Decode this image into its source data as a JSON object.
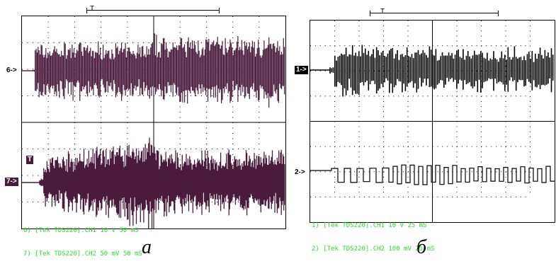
{
  "colors": {
    "trace_a": "#4a1b3d",
    "trace_b": "#000000",
    "legend": "#2be02b",
    "grid": "#000000"
  },
  "panel_a": {
    "trigger_label": "T",
    "markers": {
      "ch1": "6->",
      "ch2": "7->",
      "trigger": "T"
    },
    "legend": [
      "6) [Tek TDS220].CH1 10 V 50 mS",
      "7) [Tek TDS220].CH2 50 mV 50 mS"
    ],
    "label": "а"
  },
  "panel_b": {
    "trigger_label": "T",
    "markers": {
      "ch1": "1->",
      "ch2": "2->"
    },
    "legend": [
      "1) [Tek TDS220].CH1 10 V 25 mS",
      "2) [Tek TDS220].CH2 100 mV 25 mS"
    ],
    "label": "б"
  }
}
